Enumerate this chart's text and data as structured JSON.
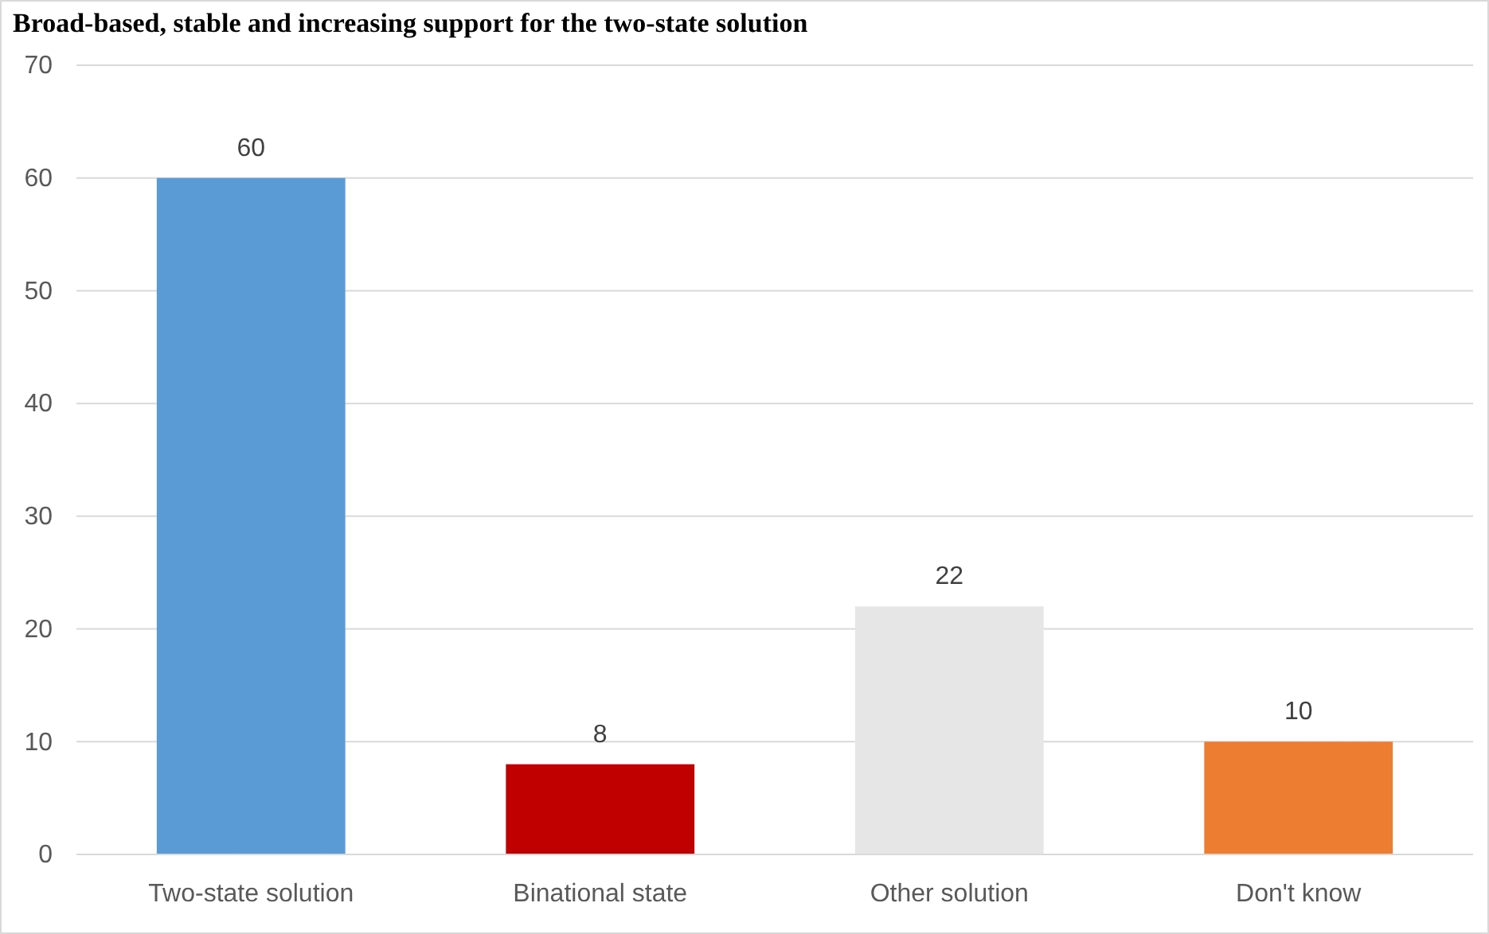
{
  "chart_data": {
    "type": "bar",
    "title": "Broad-based, stable and increasing support for the two-state solution",
    "categories": [
      "Two-state solution",
      "Binational state",
      "Other solution",
      "Don't know"
    ],
    "values": [
      60,
      8,
      22,
      10
    ],
    "colors": [
      "#5b9bd5",
      "#c00000",
      "#e7e6e6",
      "#ed7d31"
    ],
    "ylim": [
      0,
      70
    ],
    "yticks": [
      0,
      10,
      20,
      30,
      40,
      50,
      60,
      70
    ],
    "grid": "y",
    "data_labels": true
  }
}
